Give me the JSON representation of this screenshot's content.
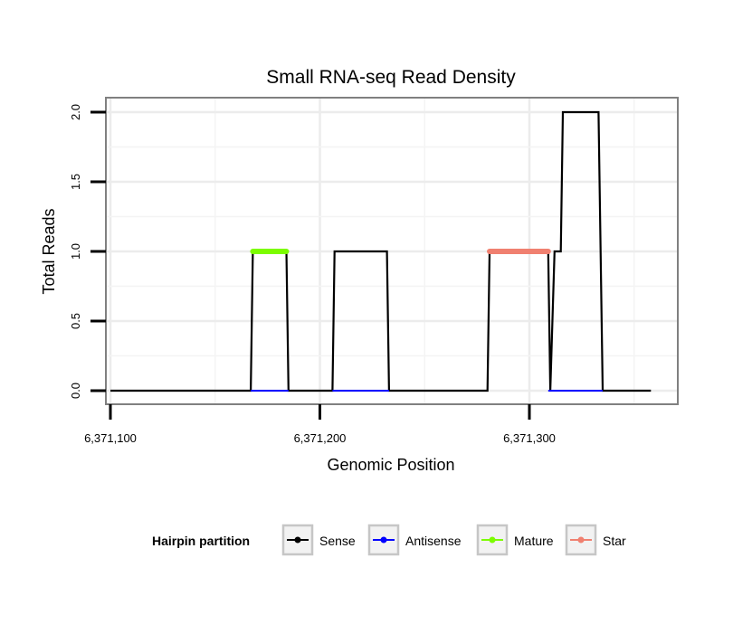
{
  "chart_data": {
    "type": "line",
    "title": "Small RNA-seq Read Density",
    "xlabel": "Genomic Position",
    "ylabel": "Total Reads",
    "xlim": [
      6371089,
      6371361
    ],
    "ylim": [
      -0.1,
      2.1
    ],
    "x_ticks": [
      6371100,
      6371200,
      6371300
    ],
    "x_tick_labels": [
      "6,371,100",
      "6,371,200",
      "6,371,300"
    ],
    "y_ticks": [
      0,
      0.5,
      1,
      1.5,
      2
    ],
    "y_tick_labels": [
      "0.0",
      "0.5",
      "1.0",
      "1.5",
      "2.0"
    ],
    "grid": true,
    "legend": {
      "title": "Hairpin partition",
      "position": "bottom",
      "entries": [
        {
          "label": "Sense",
          "color": "#000000"
        },
        {
          "label": "Antisense",
          "color": "#0000ff"
        },
        {
          "label": "Mature",
          "color": "#7cfc00"
        },
        {
          "label": "Star",
          "color": "#f08070"
        }
      ]
    },
    "series": [
      {
        "name": "Sense",
        "color": "#000000",
        "x": [
          6371100,
          6371167,
          6371168,
          6371184,
          6371185,
          6371206,
          6371207,
          6371232,
          6371233,
          6371280,
          6371281,
          6371309,
          6371310,
          6371312,
          6371315,
          6371316,
          6371333,
          6371335,
          6371358
        ],
        "y": [
          0,
          0,
          1,
          1,
          0,
          0,
          1,
          1,
          0,
          0,
          1,
          1,
          0,
          1,
          1,
          2,
          2,
          0,
          0
        ]
      },
      {
        "name": "Antisense",
        "color": "#0000ff",
        "segments": [
          [
            6371167,
            6371185
          ],
          [
            6371206,
            6371233
          ],
          [
            6371309,
            6371335
          ]
        ],
        "y": 0
      },
      {
        "name": "Mature",
        "color": "#7cfc00",
        "segments": [
          [
            6371168,
            6371184
          ]
        ],
        "y": 1
      },
      {
        "name": "Star",
        "color": "#f08070",
        "segments": [
          [
            6371281,
            6371309
          ]
        ],
        "y": 1
      }
    ]
  }
}
